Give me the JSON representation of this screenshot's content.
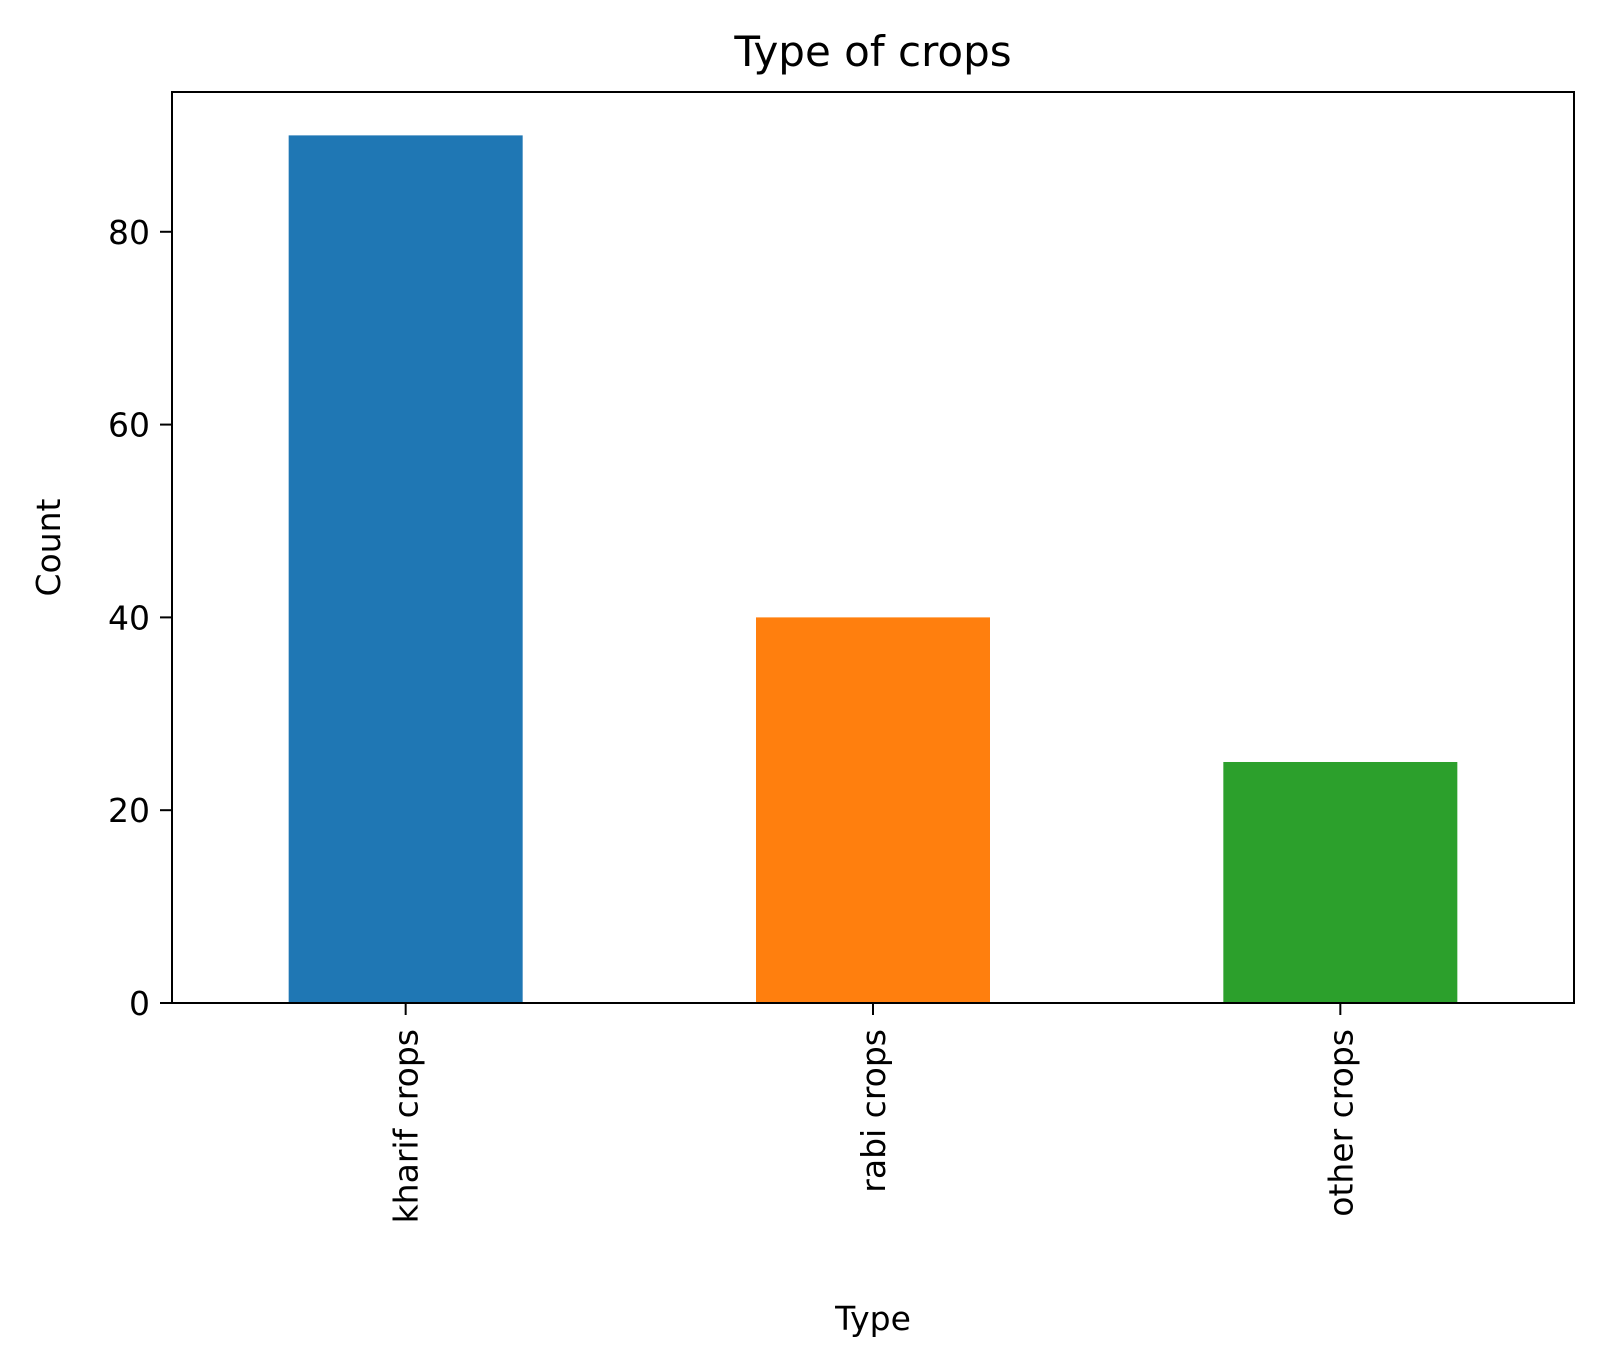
{
  "chart_data": {
    "type": "bar",
    "title": "Type of crops",
    "xlabel": "Type",
    "ylabel": "Count",
    "categories": [
      "kharif crops",
      "rabi crops",
      "other crops"
    ],
    "values": [
      90,
      40,
      25
    ],
    "colors": [
      "#1f77b4",
      "#ff7f0e",
      "#2ca02c"
    ],
    "ylim": [
      0,
      94.5
    ],
    "yticks": [
      0,
      20,
      40,
      60,
      80
    ],
    "ytick_labels": [
      "0",
      "20",
      "40",
      "60",
      "80"
    ],
    "xtick_rotation": "vertical",
    "grid": false,
    "legend": "none"
  }
}
